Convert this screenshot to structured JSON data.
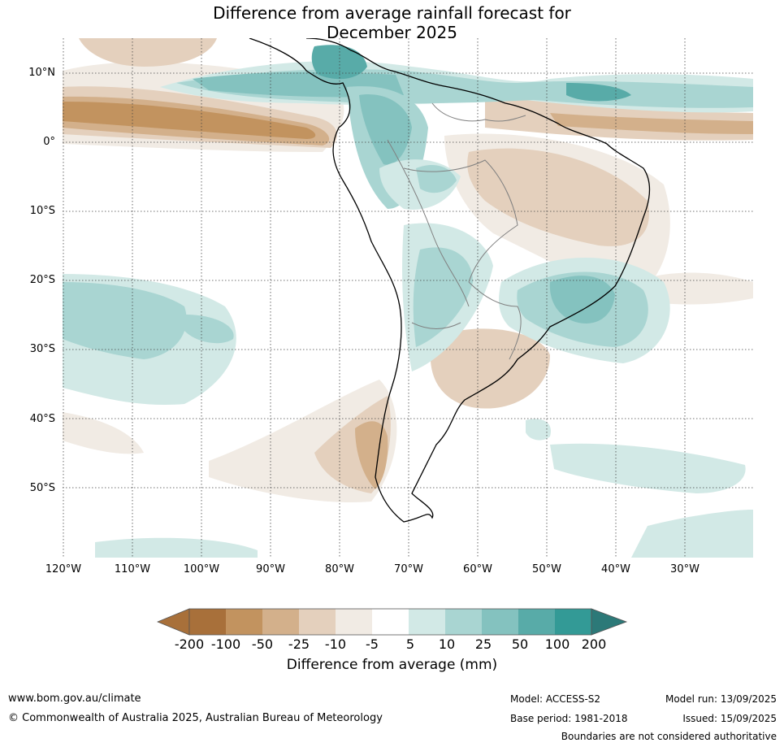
{
  "title": {
    "line1": "Difference from average rainfall forecast for",
    "line2": "December 2025"
  },
  "map": {
    "lat_labels": [
      "10°N",
      "0°",
      "10°S",
      "20°S",
      "30°S",
      "40°S",
      "50°S"
    ],
    "lon_labels": [
      "120°W",
      "110°W",
      "100°W",
      "90°W",
      "80°W",
      "70°W",
      "60°W",
      "50°W",
      "40°W",
      "30°W"
    ],
    "colors": {
      "dry_200": "#a8703a",
      "dry_100": "#c2935f",
      "dry_50": "#d3b08b",
      "dry_25": "#e4d0bd",
      "dry_10": "#f1ebe4",
      "neutral": "#ffffff",
      "wet_10": "#d2e9e6",
      "wet_25": "#a9d5d2",
      "wet_50": "#84c2bf",
      "wet_100": "#58aba8",
      "wet_200": "#339a96",
      "wet_max": "#2c7978",
      "coast": "#000000",
      "borders": "#808080"
    }
  },
  "legend": {
    "ticks": [
      "-200",
      "-100",
      "-50",
      "-25",
      "-10",
      "-5",
      "5",
      "10",
      "25",
      "50",
      "100",
      "200"
    ],
    "label": "Difference from average (mm)"
  },
  "footer": {
    "website": "www.bom.gov.au/climate",
    "copyright": "© Commonwealth of Australia 2025, Australian Bureau of Meteorology",
    "model": "Model: ACCESS-S2",
    "base_period": "Base period: 1981-2018",
    "model_run": "Model run: 13/09/2025",
    "issued": "Issued: 15/09/2025",
    "boundaries": "Boundaries are not considered authoritative"
  }
}
